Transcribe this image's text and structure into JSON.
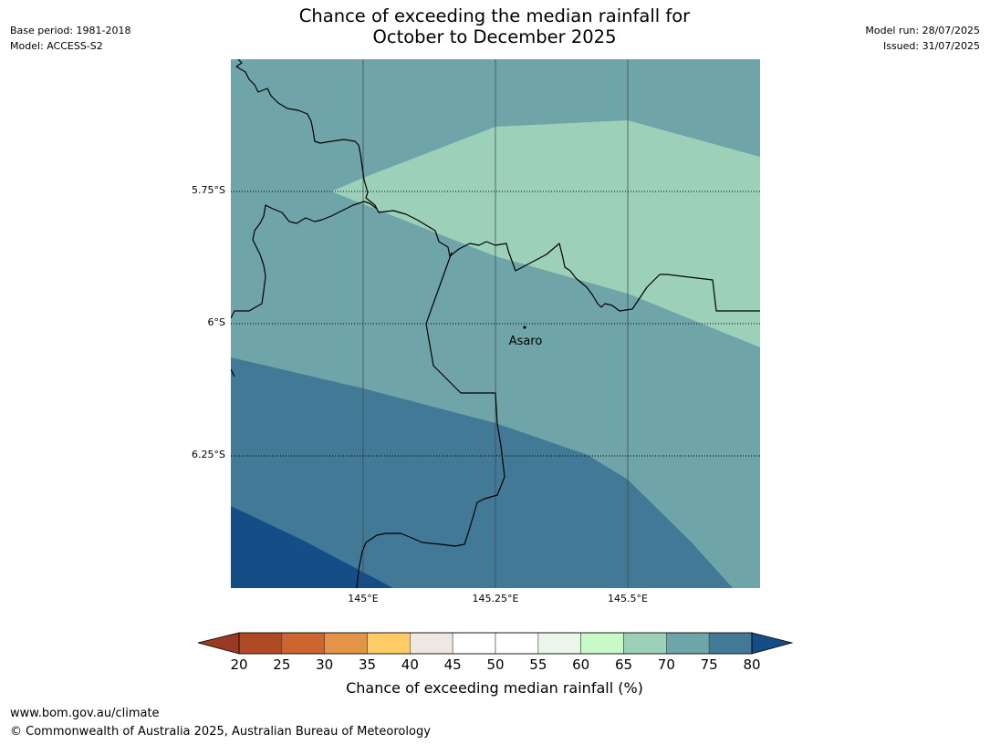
{
  "header": {
    "title_line1": "Chance of exceeding the median rainfall for",
    "title_line2": "October to December 2025",
    "base_period": "Base period: 1981-2018",
    "model": "Model: ACCESS-S2",
    "model_run": "Model run: 28/07/2025",
    "issued": "Issued: 31/07/2025"
  },
  "map": {
    "lat_labels": [
      "5.75°S",
      "6°S",
      "6.25°S"
    ],
    "lon_labels": [
      "145°E",
      "145.25°E",
      "145.5°E"
    ],
    "place": {
      "name": "Asaro"
    },
    "colors": {
      "band_70_75": "#6fa5a8",
      "band_65_70": "#9dd0b9",
      "band_75_80": "#417996",
      "band_80_plus": "#154d87"
    }
  },
  "colorbar": {
    "title": "Chance of exceeding median rainfall (%)",
    "ticks": [
      "20",
      "25",
      "30",
      "35",
      "40",
      "45",
      "50",
      "55",
      "60",
      "65",
      "70",
      "75",
      "80"
    ],
    "under_color": "#9b3a22",
    "over_color": "#154d87",
    "colors": [
      "#b04a25",
      "#cd6530",
      "#e39446",
      "#fecb65",
      "#ede8e4",
      "#ffffff",
      "#ffffff",
      "#eaf6ea",
      "#c8fac9",
      "#9dd0b9",
      "#6fa5a8",
      "#417996"
    ]
  },
  "footer": {
    "url": "www.bom.gov.au/climate",
    "copyright": "© Commonwealth of Australia 2025, Australian Bureau of Meteorology"
  }
}
